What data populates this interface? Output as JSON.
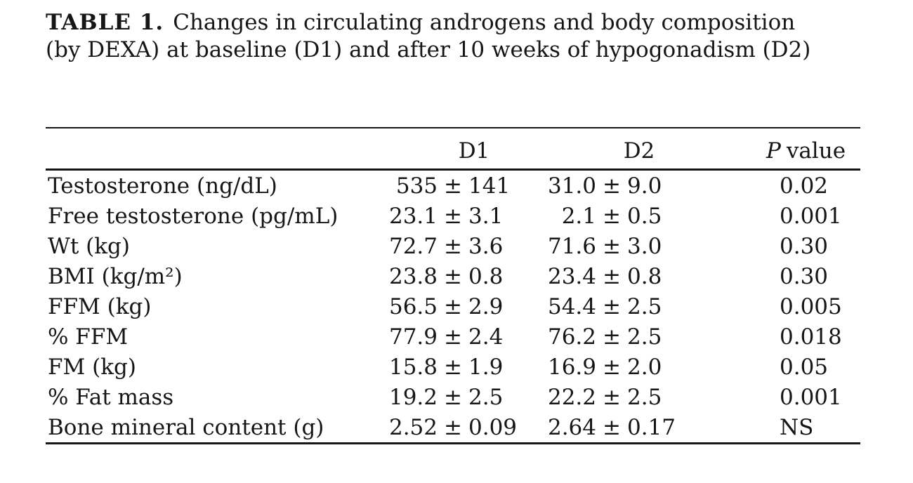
{
  "page": {
    "background": "#ffffff",
    "text_color": "#161616"
  },
  "table_caption": {
    "label": "TABLE 1.",
    "text": "Changes in circulating androgens and body composition (by DEXA) at baseline (D1) and after 10 weeks of hypogonadism (D2)"
  },
  "table": {
    "pm_sign": "±",
    "header": {
      "col_label": "",
      "col_d1": "D1",
      "col_d2": "D2",
      "col_p_italic": "P",
      "col_p_rest": "value"
    },
    "rows": [
      {
        "label": "Testosterone (ng/dL)",
        "d1_mean": "535",
        "d1_sd": "141",
        "d2_mean": "31.0",
        "d2_sd": "9.0",
        "p": "0.02"
      },
      {
        "label": "Free testosterone (pg/mL)",
        "d1_mean": "23.1",
        "d1_sd": "3.1",
        "d2_mean": "2.1",
        "d2_sd": "0.5",
        "p": "0.001"
      },
      {
        "label": "Wt (kg)",
        "d1_mean": "72.7",
        "d1_sd": "3.6",
        "d2_mean": "71.6",
        "d2_sd": "3.0",
        "p": "0.30"
      },
      {
        "label": "BMI (kg/m²)",
        "d1_mean": "23.8",
        "d1_sd": "0.8",
        "d2_mean": "23.4",
        "d2_sd": "0.8",
        "p": "0.30"
      },
      {
        "label": "FFM (kg)",
        "d1_mean": "56.5",
        "d1_sd": "2.9",
        "d2_mean": "54.4",
        "d2_sd": "2.5",
        "p": "0.005"
      },
      {
        "label": "% FFM",
        "d1_mean": "77.9",
        "d1_sd": "2.4",
        "d2_mean": "76.2",
        "d2_sd": "2.5",
        "p": "0.018"
      },
      {
        "label": "FM (kg)",
        "d1_mean": "15.8",
        "d1_sd": "1.9",
        "d2_mean": "16.9",
        "d2_sd": "2.0",
        "p": "0.05"
      },
      {
        "label": "% Fat mass",
        "d1_mean": "19.2",
        "d1_sd": "2.5",
        "d2_mean": "22.2",
        "d2_sd": "2.5",
        "p": "0.001"
      },
      {
        "label": "Bone mineral content (g)",
        "d1_mean": "2.52",
        "d1_sd": "0.09",
        "d2_mean": "2.64",
        "d2_sd": "0.17",
        "p": "NS"
      }
    ]
  }
}
